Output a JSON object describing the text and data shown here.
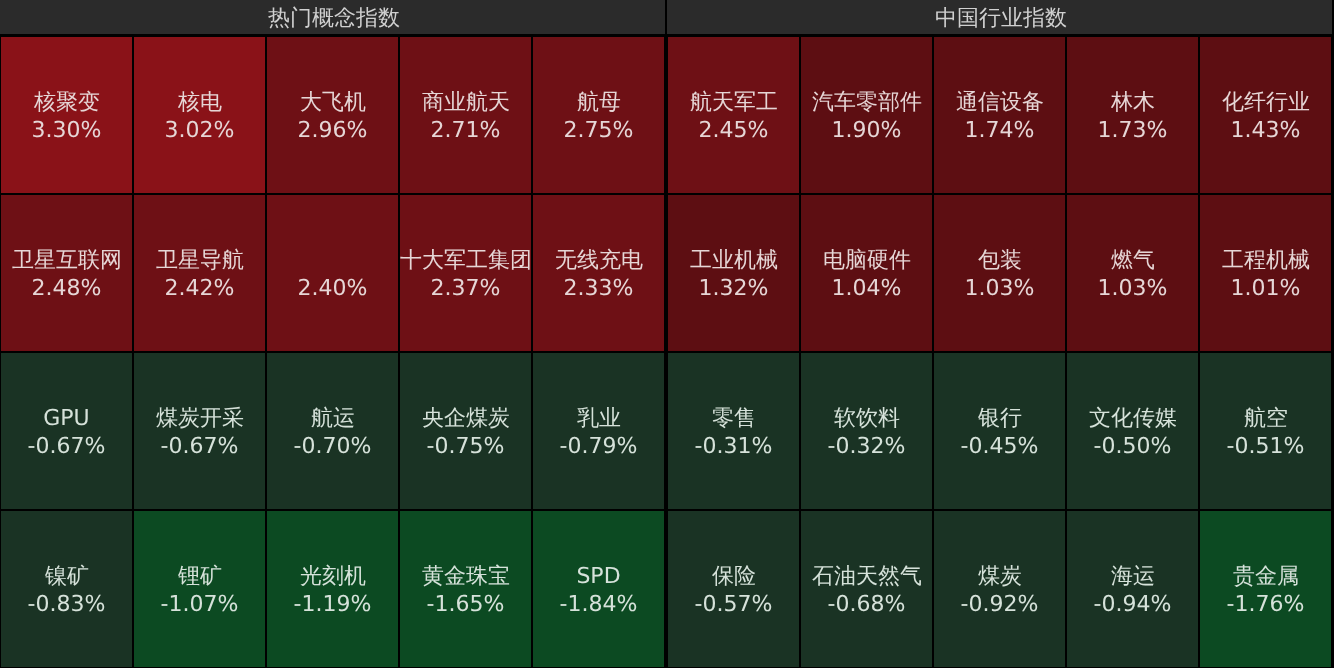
{
  "chart_data": [
    {
      "type": "other",
      "title": "热门概念指数",
      "categories": [
        "核聚变",
        "核电",
        "大飞机",
        "商业航天",
        "航母",
        "卫星互联网",
        "卫星导航",
        null,
        "十大军工集团",
        "无线充电",
        "GPU",
        "煤炭开采",
        "航运",
        "央企煤炭",
        "乳业",
        "镍矿",
        "锂矿",
        "光刻机",
        "黄金珠宝",
        "SPD"
      ],
      "values": [
        3.3,
        3.02,
        2.96,
        2.71,
        2.75,
        2.48,
        2.42,
        2.4,
        2.37,
        2.33,
        -0.67,
        -0.67,
        -0.7,
        -0.75,
        -0.79,
        -0.83,
        -1.07,
        -1.19,
        -1.65,
        -1.84
      ],
      "value_labels": [
        "3.30%",
        "3.02%",
        "2.96%",
        "2.71%",
        "2.75%",
        "2.48%",
        "2.42%",
        "2.40%",
        "2.37%",
        "2.33%",
        "-0.67%",
        "-0.67%",
        "-0.70%",
        "-0.75%",
        "-0.79%",
        "-0.83%",
        "-1.07%",
        "-1.19%",
        "-1.65%",
        "-1.84%"
      ],
      "colors": [
        "#8a1218",
        "#8a1218",
        "#6e1015",
        "#6e1015",
        "#6e1015",
        "#6e1015",
        "#6e1015",
        "#6e1015",
        "#6e1015",
        "#6e1015",
        "#1a3324",
        "#1a3324",
        "#1a3324",
        "#1a3324",
        "#1a3324",
        "#1a3324",
        "#0c4a22",
        "#0c4a22",
        "#0c4a22",
        "#0c4a22"
      ]
    },
    {
      "type": "other",
      "title": "中国行业指数",
      "categories": [
        "航天军工",
        "汽车零部件",
        "通信设备",
        "林木",
        "化纤行业",
        "工业机械",
        "电脑硬件",
        "包装",
        "燃气",
        "工程机械",
        "零售",
        "软饮料",
        "银行",
        "文化传媒",
        "航空",
        "保险",
        "石油天然气",
        "煤炭",
        "海运",
        "贵金属"
      ],
      "values": [
        2.45,
        1.9,
        1.74,
        1.73,
        1.43,
        1.32,
        1.04,
        1.03,
        1.03,
        1.01,
        -0.31,
        -0.32,
        -0.45,
        -0.5,
        -0.51,
        -0.57,
        -0.68,
        -0.92,
        -0.94,
        -1.76
      ],
      "value_labels": [
        "2.45%",
        "1.90%",
        "1.74%",
        "1.73%",
        "1.43%",
        "1.32%",
        "1.04%",
        "1.03%",
        "1.03%",
        "1.01%",
        "-0.31%",
        "-0.32%",
        "-0.45%",
        "-0.50%",
        "-0.51%",
        "-0.57%",
        "-0.68%",
        "-0.92%",
        "-0.94%",
        "-1.76%"
      ],
      "colors": [
        "#6e1015",
        "#5d0e12",
        "#5d0e12",
        "#5d0e12",
        "#5d0e12",
        "#5d0e12",
        "#5d0e12",
        "#5d0e12",
        "#5d0e12",
        "#5d0e12",
        "#1a3324",
        "#1a3324",
        "#1a3324",
        "#1a3324",
        "#1a3324",
        "#1a3324",
        "#1a3324",
        "#1a3324",
        "#1a3324",
        "#0c4a22"
      ]
    }
  ]
}
